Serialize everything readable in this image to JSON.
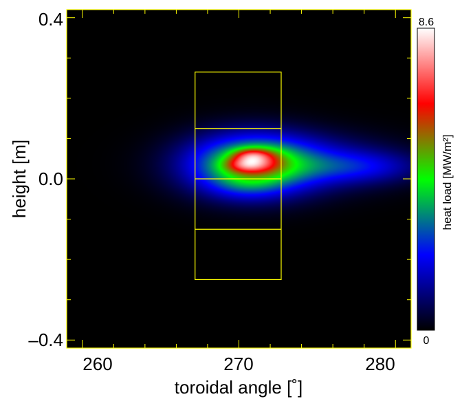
{
  "chart_data": {
    "type": "heatmap",
    "title": "",
    "xlabel": "toroidal angle [˚]",
    "ylabel": "height [m]",
    "xlim": [
      259,
      281
    ],
    "ylim": [
      -0.42,
      0.42
    ],
    "x_ticks": [
      {
        "value": 260,
        "label": "260"
      },
      {
        "value": 270,
        "label": "270"
      },
      {
        "value": 280,
        "label": "280"
      }
    ],
    "y_ticks": [
      {
        "value": 0.4,
        "label": "0.4"
      },
      {
        "value": 0.0,
        "label": "0.0"
      },
      {
        "value": -0.4,
        "label": "–0.4"
      }
    ],
    "x_minor_step": 2,
    "y_minor_step": 0.1,
    "colorbar": {
      "label": "heat load [MW/m²]",
      "max_label": "8.6",
      "min_label": "0",
      "max": 8.6,
      "min": 0,
      "colormap": [
        "#000000",
        "#0000ff",
        "#00ff00",
        "#ff0000",
        "#ffffff"
      ]
    },
    "peak": {
      "x": 270.8,
      "y": 0.045,
      "value": 8.6
    },
    "heat_blobs": [
      {
        "x": 270.9,
        "y": 0.035,
        "sx": 2.5,
        "sy": 0.045,
        "amp": 0.3
      },
      {
        "x": 274.0,
        "y": 0.04,
        "sx": 3.5,
        "sy": 0.04,
        "amp": 0.08
      },
      {
        "x": 270.8,
        "y": 0.058,
        "sx": 0.8,
        "sy": 0.012,
        "amp": 0.22
      },
      {
        "x": 270.5,
        "y": 0.035,
        "sx": 0.9,
        "sy": 0.013,
        "amp": 0.24
      },
      {
        "x": 271.8,
        "y": 0.045,
        "sx": 0.9,
        "sy": 0.02,
        "amp": 0.1
      },
      {
        "x": 277.5,
        "y": 0.03,
        "sx": 2.5,
        "sy": 0.025,
        "amp": 0.08
      },
      {
        "x": 270.5,
        "y": -0.01,
        "sx": 1.5,
        "sy": 0.025,
        "amp": 0.06
      }
    ],
    "tile_outlines": [
      {
        "x0": 267.2,
        "x1": 272.7,
        "y0": -0.25,
        "y1": 0.265
      },
      {
        "x0": 267.2,
        "x1": 272.7,
        "y0": 0.125,
        "y1": 0.125
      },
      {
        "x0": 267.2,
        "x1": 272.7,
        "y0": 0.0,
        "y1": 0.0
      },
      {
        "x0": 267.2,
        "x1": 272.7,
        "y0": -0.125,
        "y1": -0.125
      }
    ],
    "frame_color": "#ffff00",
    "outline_color": "#ffff00",
    "grid": false,
    "legend": "colorbar-right"
  }
}
